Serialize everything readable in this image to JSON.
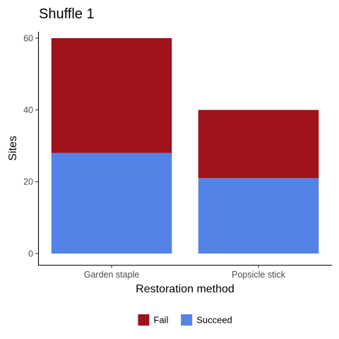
{
  "chart_data": {
    "type": "bar",
    "stacked": true,
    "title": "Shuffle 1",
    "xlabel": "Restoration method",
    "ylabel": "Sites",
    "categories": [
      "Garden staple",
      "Popsicle stick"
    ],
    "series": [
      {
        "name": "Succeed",
        "values": [
          28,
          21
        ],
        "color": "#5483E8"
      },
      {
        "name": "Fail",
        "values": [
          32,
          19
        ],
        "color": "#A1131C"
      }
    ],
    "ylim": [
      0,
      60
    ],
    "yticks": [
      0,
      20,
      40,
      60
    ],
    "legend": {
      "placement": "bottom",
      "order": [
        "Fail",
        "Succeed"
      ]
    },
    "grid": false
  }
}
